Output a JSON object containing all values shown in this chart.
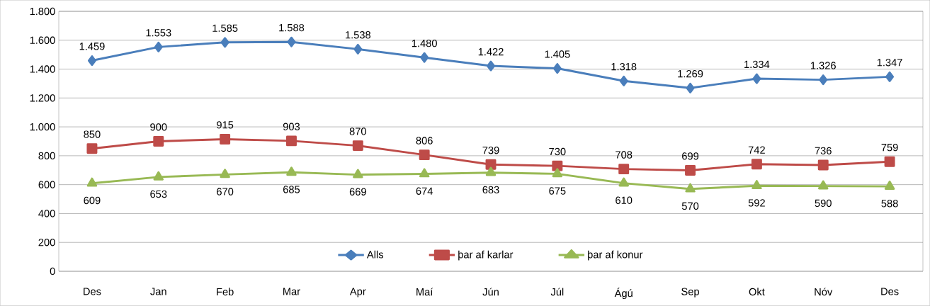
{
  "chart_data": {
    "type": "line",
    "categories": [
      "Des",
      "Jan",
      "Feb",
      "Mar",
      "Apr",
      "Maí",
      "Jún",
      "Júl",
      "Ágú",
      "Sep",
      "Okt",
      "Nóv",
      "Des"
    ],
    "series": [
      {
        "name": "Alls",
        "color": "#4a7ebb",
        "marker": "diamond",
        "values": [
          1459,
          1553,
          1585,
          1588,
          1538,
          1480,
          1422,
          1405,
          1318,
          1269,
          1334,
          1326,
          1347
        ],
        "value_labels": [
          "1.459",
          "1.553",
          "1.585",
          "1.588",
          "1.538",
          "1.480",
          "1.422",
          "1.405",
          "1.318",
          "1.269",
          "1.334",
          "1.326",
          "1.347"
        ]
      },
      {
        "name": "þar af karlar",
        "color": "#be4b48",
        "marker": "square",
        "values": [
          850,
          900,
          915,
          903,
          870,
          806,
          739,
          730,
          708,
          699,
          742,
          736,
          759
        ],
        "value_labels": [
          "850",
          "900",
          "915",
          "903",
          "870",
          "806",
          "739",
          "730",
          "708",
          "699",
          "742",
          "736",
          "759"
        ]
      },
      {
        "name": "þar af konur",
        "color": "#98b954",
        "marker": "triangle",
        "values": [
          609,
          653,
          670,
          685,
          669,
          674,
          683,
          675,
          610,
          570,
          592,
          590,
          588
        ],
        "value_labels": [
          "609",
          "653",
          "670",
          "685",
          "669",
          "674",
          "683",
          "675",
          "610",
          "570",
          "592",
          "590",
          "588"
        ]
      }
    ],
    "ylim": [
      0,
      1800
    ],
    "yticks": [
      0,
      200,
      400,
      600,
      800,
      {
        "value": 1000,
        "label": "1.000"
      },
      {
        "value": 1200,
        "label": "1.200"
      },
      {
        "value": 1400,
        "label": "1.400"
      },
      {
        "value": 1600,
        "label": "1.600"
      },
      {
        "value": 1800,
        "label": "1.800"
      }
    ],
    "grid": "y",
    "legend": "bottom",
    "line_style": "solid"
  }
}
